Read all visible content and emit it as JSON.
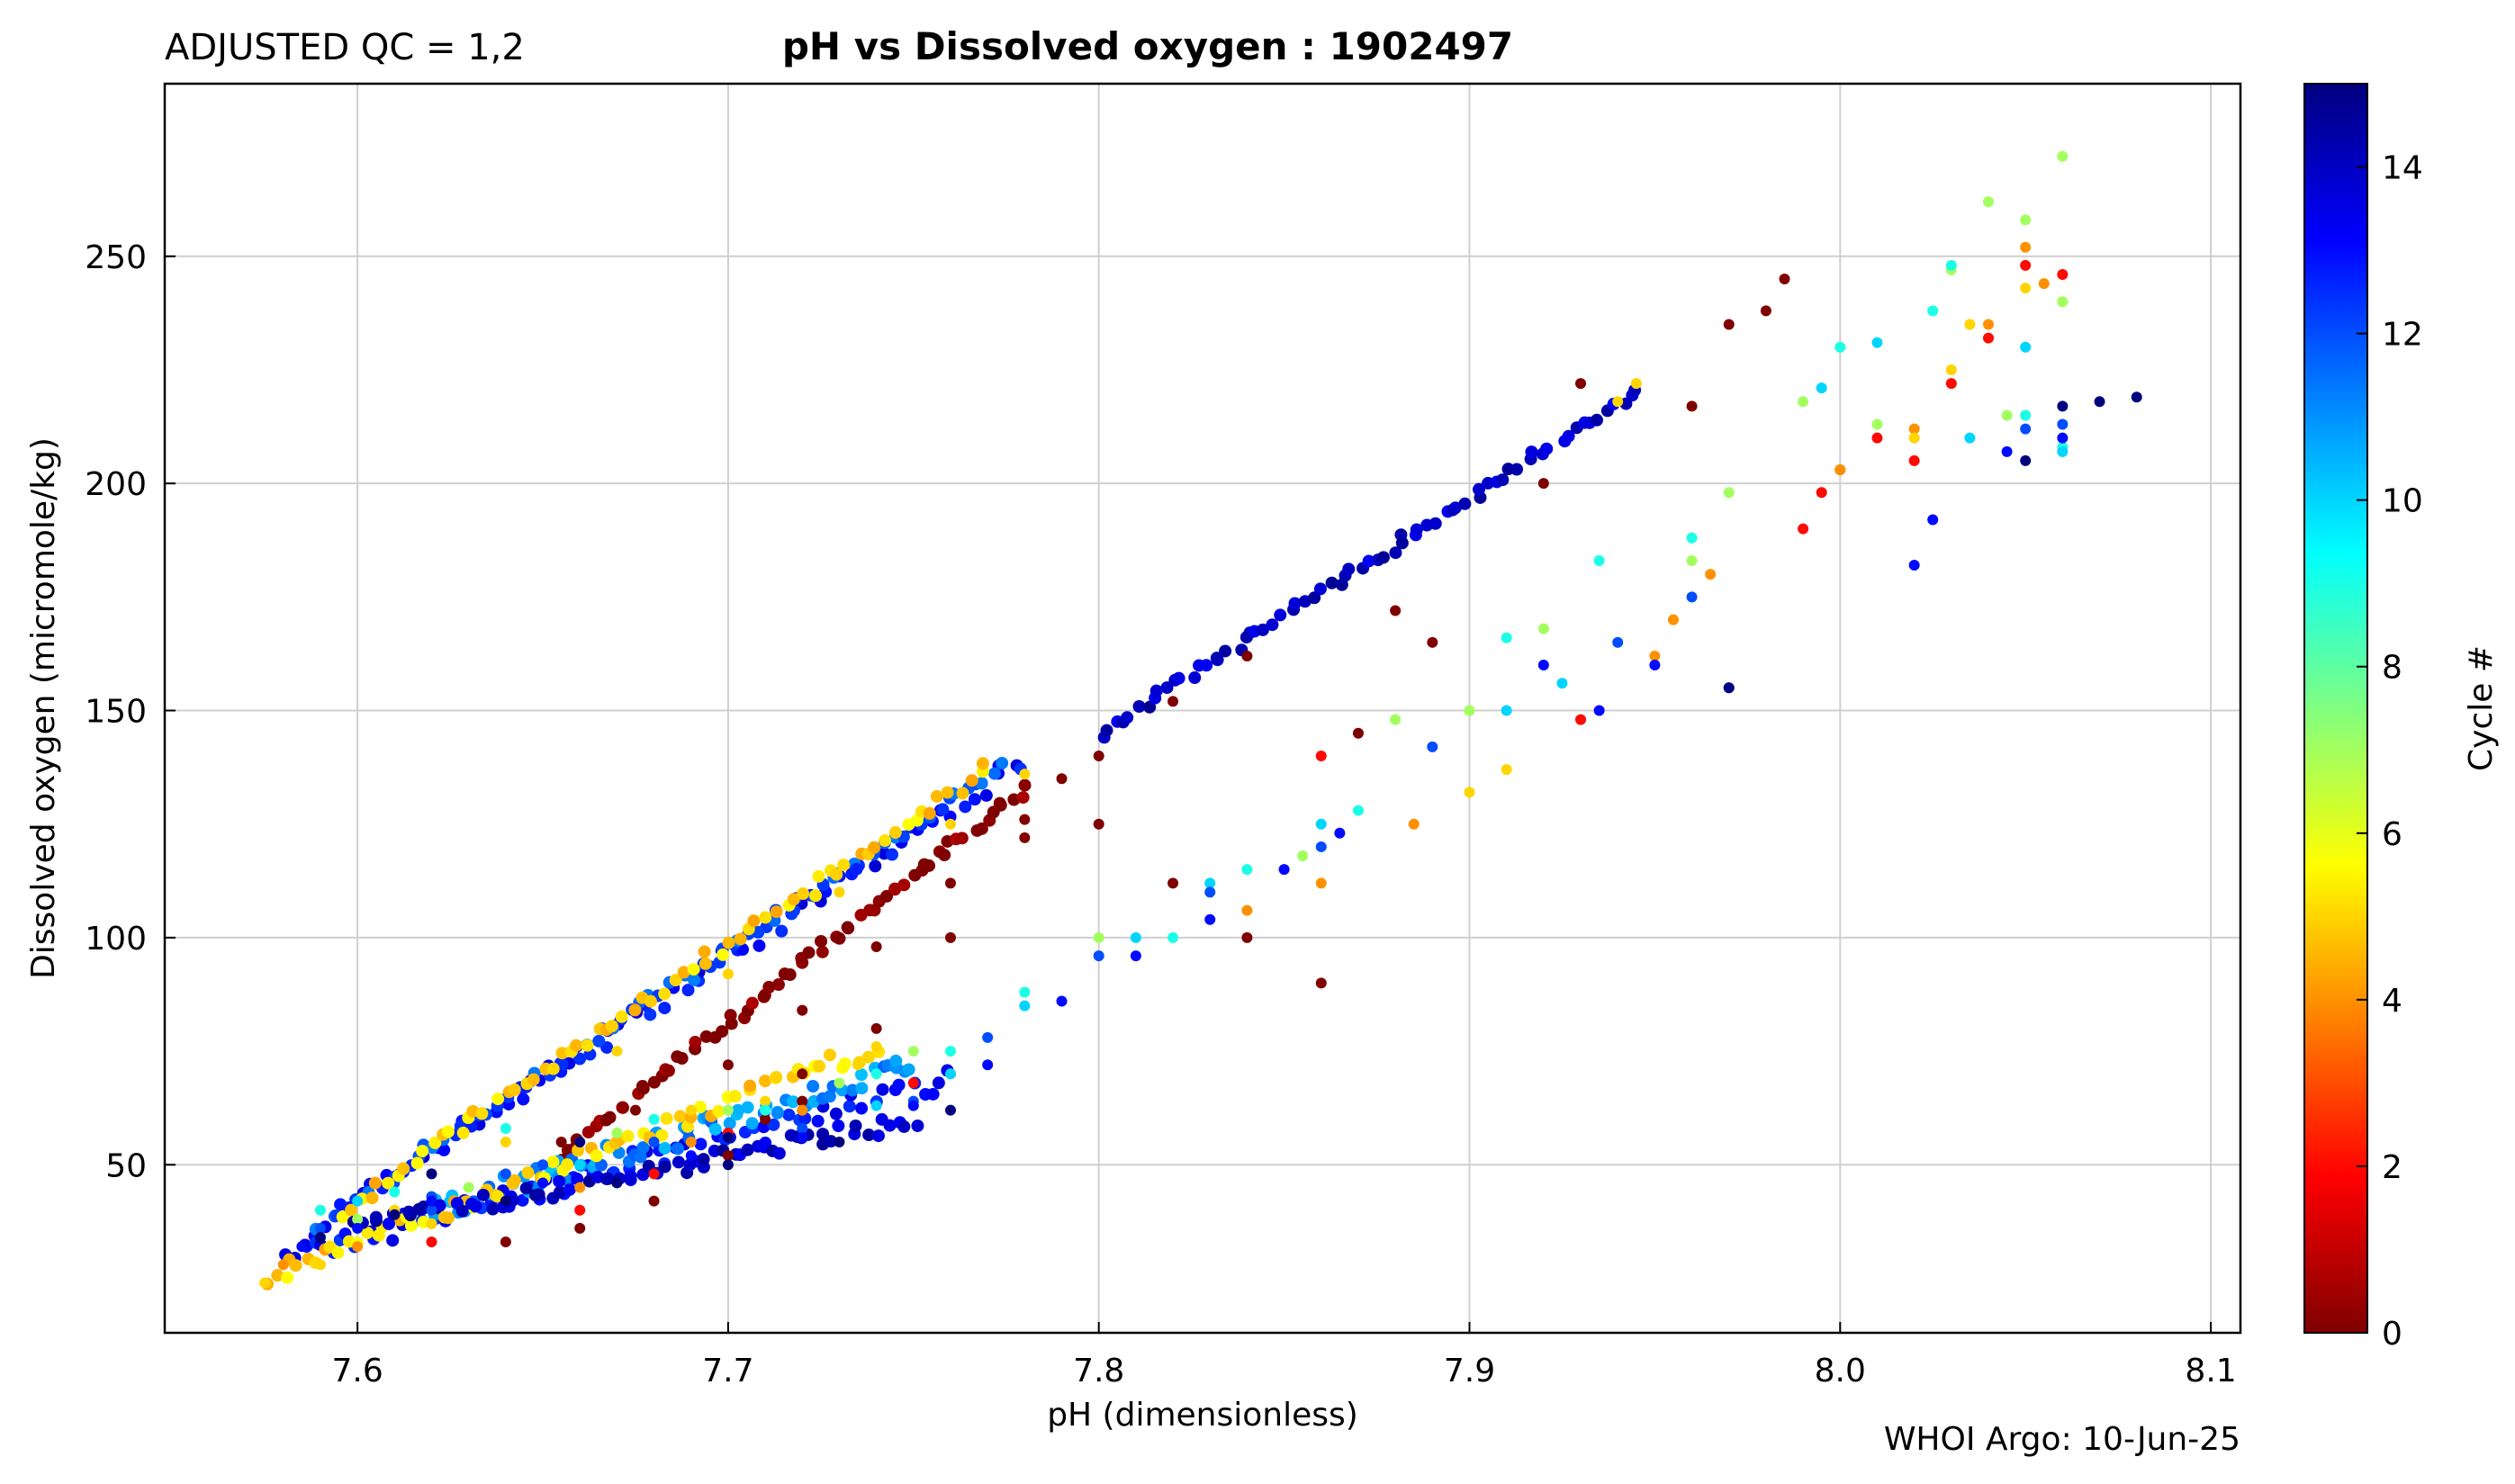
{
  "header": {
    "left_title": "ADJUSTED QC = 1,2",
    "title": "pH vs Dissolved oxygen : 1902497"
  },
  "footer": {
    "credit": "WHOI Argo: 10-Jun-25"
  },
  "chart_data": {
    "type": "scatter",
    "title": "pH vs Dissolved oxygen : 1902497",
    "xlabel": "pH  (dimensionless)",
    "ylabel": "Dissolved oxygen  (micromole/kg)",
    "xlim": [
      7.548,
      8.108
    ],
    "ylim": [
      13,
      288
    ],
    "xticks": [
      7.6,
      7.7,
      7.8,
      7.9,
      8.0,
      8.1
    ],
    "xtick_labels": [
      "7.6",
      "7.7",
      "7.8",
      "7.9",
      "8.0",
      "8.1"
    ],
    "yticks": [
      50,
      100,
      150,
      200,
      250
    ],
    "ytick_labels": [
      "50",
      "100",
      "150",
      "200",
      "250"
    ],
    "grid": true,
    "colormap": "jet",
    "colorbar": {
      "label": "Cycle #",
      "range": [
        0,
        15
      ],
      "ticks": [
        0,
        2,
        4,
        6,
        8,
        10,
        12,
        14
      ],
      "tick_labels": [
        "0",
        "2",
        "4",
        "6",
        "8",
        "10",
        "12",
        "14"
      ],
      "colors": [
        "#7f0000",
        "#ff0000",
        "#ff8000",
        "#ffff00",
        "#80ff80",
        "#00ffff",
        "#0080ff",
        "#0000ff",
        "#00007f"
      ]
    },
    "series": [
      {
        "cycle": 0,
        "points": [
          [
            7.64,
            33
          ],
          [
            7.66,
            36
          ],
          [
            7.68,
            42
          ],
          [
            7.7,
            52
          ],
          [
            7.72,
            64
          ],
          [
            7.74,
            80
          ],
          [
            7.76,
            100
          ],
          [
            7.78,
            122
          ],
          [
            7.79,
            135
          ],
          [
            7.655,
            55
          ],
          [
            7.675,
            62
          ],
          [
            7.7,
            72
          ],
          [
            7.72,
            84
          ],
          [
            7.74,
            98
          ],
          [
            7.76,
            112
          ],
          [
            7.78,
            126
          ],
          [
            7.8,
            140
          ],
          [
            7.82,
            152
          ],
          [
            7.84,
            162
          ],
          [
            7.88,
            172
          ],
          [
            7.92,
            200
          ],
          [
            7.93,
            222
          ],
          [
            7.96,
            217
          ],
          [
            7.985,
            245
          ],
          [
            7.98,
            238
          ],
          [
            7.97,
            235
          ],
          [
            7.8,
            125
          ],
          [
            7.82,
            112
          ],
          [
            7.84,
            100
          ],
          [
            7.86,
            90
          ],
          [
            7.87,
            145
          ],
          [
            7.89,
            165
          ],
          [
            7.72,
            70
          ],
          [
            7.71,
            60
          ]
        ]
      },
      {
        "cycle": 2,
        "points": [
          [
            7.62,
            33
          ],
          [
            7.66,
            40
          ],
          [
            7.68,
            48
          ],
          [
            7.7,
            57
          ],
          [
            7.72,
            62
          ],
          [
            7.75,
            68
          ],
          [
            7.86,
            140
          ],
          [
            7.93,
            148
          ],
          [
            7.99,
            190
          ],
          [
            8.0,
            203
          ],
          [
            8.01,
            210
          ],
          [
            8.03,
            222
          ],
          [
            8.04,
            232
          ],
          [
            8.05,
            248
          ],
          [
            8.06,
            246
          ],
          [
            7.995,
            198
          ],
          [
            8.02,
            205
          ]
        ]
      },
      {
        "cycle": 4,
        "points": [
          [
            7.58,
            28
          ],
          [
            7.6,
            32
          ],
          [
            7.66,
            45
          ],
          [
            7.69,
            55
          ],
          [
            7.72,
            62
          ],
          [
            7.76,
            70
          ],
          [
            7.84,
            106
          ],
          [
            7.86,
            112
          ],
          [
            7.885,
            125
          ],
          [
            7.95,
            162
          ],
          [
            7.955,
            170
          ],
          [
            7.965,
            180
          ],
          [
            8.0,
            203
          ],
          [
            8.02,
            212
          ],
          [
            8.04,
            235
          ],
          [
            8.05,
            252
          ],
          [
            8.055,
            244
          ]
        ]
      },
      {
        "cycle": 5,
        "points": [
          [
            7.575,
            24
          ],
          [
            7.59,
            28
          ],
          [
            7.62,
            37
          ],
          [
            7.66,
            55
          ],
          [
            7.69,
            62
          ],
          [
            7.71,
            64
          ],
          [
            7.74,
            76
          ],
          [
            7.735,
            72
          ],
          [
            7.61,
            40
          ],
          [
            7.64,
            55
          ],
          [
            7.67,
            75
          ],
          [
            7.7,
            92
          ],
          [
            7.73,
            110
          ],
          [
            7.76,
            125
          ],
          [
            7.78,
            136
          ],
          [
            7.9,
            132
          ],
          [
            7.91,
            137
          ],
          [
            7.945,
            222
          ],
          [
            7.94,
            218
          ],
          [
            8.02,
            210
          ],
          [
            8.03,
            225
          ],
          [
            8.035,
            235
          ],
          [
            8.05,
            243
          ]
        ]
      },
      {
        "cycle": 7,
        "points": [
          [
            7.6,
            38
          ],
          [
            7.63,
            45
          ],
          [
            7.67,
            57
          ],
          [
            7.7,
            62
          ],
          [
            7.73,
            68
          ],
          [
            7.75,
            75
          ],
          [
            7.8,
            100
          ],
          [
            7.83,
            110
          ],
          [
            7.855,
            118
          ],
          [
            7.88,
            148
          ],
          [
            7.9,
            150
          ],
          [
            7.92,
            168
          ],
          [
            7.96,
            183
          ],
          [
            7.97,
            198
          ],
          [
            8.03,
            247
          ],
          [
            8.04,
            262
          ],
          [
            8.05,
            258
          ],
          [
            8.06,
            272
          ],
          [
            8.06,
            240
          ],
          [
            8.045,
            215
          ],
          [
            7.99,
            218
          ],
          [
            8.01,
            213
          ]
        ]
      },
      {
        "cycle": 9,
        "points": [
          [
            7.59,
            40
          ],
          [
            7.61,
            44
          ],
          [
            7.64,
            58
          ],
          [
            7.68,
            60
          ],
          [
            7.71,
            62
          ],
          [
            7.74,
            70
          ],
          [
            7.76,
            75
          ],
          [
            7.78,
            88
          ],
          [
            7.82,
            100
          ],
          [
            7.84,
            115
          ],
          [
            7.87,
            128
          ],
          [
            7.91,
            166
          ],
          [
            7.935,
            183
          ],
          [
            7.96,
            188
          ],
          [
            8.0,
            230
          ],
          [
            8.025,
            238
          ],
          [
            8.05,
            215
          ],
          [
            8.06,
            208
          ],
          [
            8.03,
            248
          ]
        ]
      },
      {
        "cycle": 10,
        "points": [
          [
            7.6,
            42
          ],
          [
            7.66,
            50
          ],
          [
            7.7,
            56
          ],
          [
            7.74,
            63
          ],
          [
            7.76,
            70
          ],
          [
            7.78,
            85
          ],
          [
            7.81,
            100
          ],
          [
            7.83,
            112
          ],
          [
            7.86,
            125
          ],
          [
            7.91,
            150
          ],
          [
            7.925,
            156
          ],
          [
            7.995,
            221
          ],
          [
            8.01,
            231
          ],
          [
            8.05,
            230
          ],
          [
            8.06,
            207
          ],
          [
            8.035,
            210
          ]
        ]
      },
      {
        "cycle": 12,
        "points": [
          [
            7.59,
            36
          ],
          [
            7.62,
            40
          ],
          [
            7.65,
            50
          ],
          [
            7.68,
            55
          ],
          [
            7.72,
            58
          ],
          [
            7.75,
            64
          ],
          [
            7.77,
            78
          ],
          [
            7.8,
            96
          ],
          [
            7.83,
            110
          ],
          [
            7.86,
            120
          ],
          [
            7.89,
            142
          ],
          [
            7.94,
            165
          ],
          [
            7.96,
            175
          ],
          [
            8.05,
            212
          ],
          [
            8.06,
            213
          ],
          [
            7.64,
            48
          ],
          [
            7.62,
            43
          ]
        ]
      },
      {
        "cycle": 13,
        "points": [
          [
            7.585,
            32
          ],
          [
            7.6,
            36
          ],
          [
            7.62,
            42
          ],
          [
            7.65,
            46
          ],
          [
            7.69,
            52
          ],
          [
            7.72,
            56
          ],
          [
            7.75,
            63
          ],
          [
            7.77,
            72
          ],
          [
            7.79,
            86
          ],
          [
            7.81,
            96
          ],
          [
            7.83,
            104
          ],
          [
            7.85,
            115
          ],
          [
            7.865,
            123
          ],
          [
            7.92,
            160
          ],
          [
            7.935,
            150
          ],
          [
            7.95,
            160
          ],
          [
            7.97,
            155
          ],
          [
            8.045,
            207
          ],
          [
            8.06,
            210
          ],
          [
            8.025,
            192
          ],
          [
            8.02,
            182
          ]
        ]
      },
      {
        "cycle": 15,
        "points": [
          [
            7.59,
            34
          ],
          [
            7.61,
            39
          ],
          [
            7.64,
            42
          ],
          [
            7.67,
            46
          ],
          [
            7.7,
            50
          ],
          [
            7.73,
            55
          ],
          [
            7.76,
            62
          ],
          [
            7.62,
            48
          ],
          [
            7.66,
            55
          ],
          [
            7.7,
            56
          ],
          [
            8.06,
            217
          ],
          [
            8.07,
            218
          ],
          [
            8.08,
            219
          ],
          [
            8.05,
            205
          ],
          [
            7.97,
            155
          ]
        ]
      }
    ],
    "bands": [
      {
        "cycle": 13,
        "from": [
          7.585,
          34
        ],
        "to": [
          7.78,
          139
        ],
        "spread": 4
      },
      {
        "cycle": 12,
        "from": [
          7.59,
          37
        ],
        "to": [
          7.775,
          138
        ],
        "spread": 3
      },
      {
        "cycle": 5,
        "from": [
          7.595,
          40
        ],
        "to": [
          7.77,
          137
        ],
        "spread": 3
      },
      {
        "cycle": 14,
        "from": [
          7.8,
          145
        ],
        "to": [
          7.945,
          220
        ],
        "spread": 2
      },
      {
        "cycle": 0,
        "from": [
          7.655,
          52
        ],
        "to": [
          7.78,
          133
        ],
        "spread": 2
      },
      {
        "cycle": 13,
        "from": [
          7.58,
          30
        ],
        "to": [
          7.76,
          68
        ],
        "spread": 6
      },
      {
        "cycle": 11,
        "from": [
          7.62,
          40
        ],
        "to": [
          7.75,
          72
        ],
        "spread": 5
      },
      {
        "cycle": 5,
        "from": [
          7.575,
          25
        ],
        "to": [
          7.74,
          76
        ],
        "spread": 4
      },
      {
        "cycle": 14,
        "from": [
          7.6,
          36
        ],
        "to": [
          7.75,
          60
        ],
        "spread": 4
      }
    ]
  }
}
